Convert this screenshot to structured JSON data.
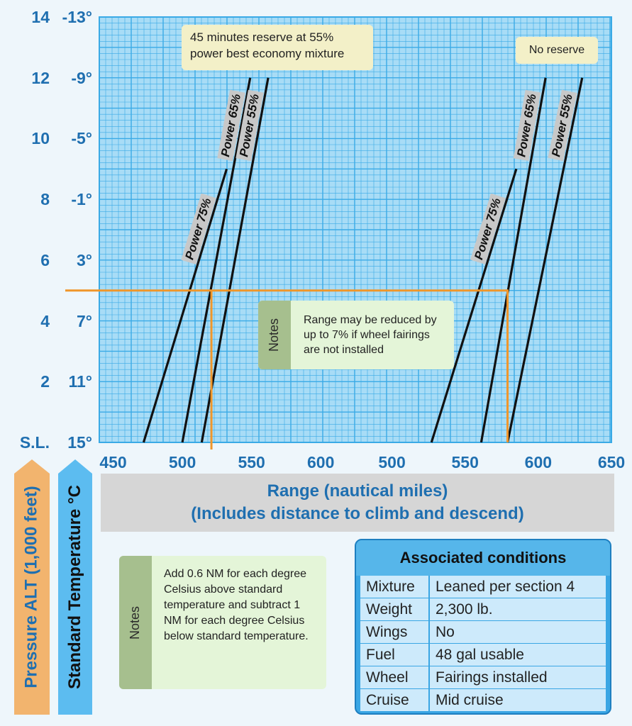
{
  "chart_data": {
    "type": "line",
    "title": "",
    "xlabel": "Range (nautical miles)",
    "xlabel_sub": "(Includes distance to climb and descend)",
    "ylabel_left": "Pressure ALT (1,000 feet)",
    "ylabel_right": "Standard Temperature °C",
    "ylim": [
      0,
      14
    ],
    "y_ticks": [
      {
        "alt": "14",
        "temp": "-13°",
        "v": 14
      },
      {
        "alt": "12",
        "temp": "-9°",
        "v": 12
      },
      {
        "alt": "10",
        "temp": "-5°",
        "v": 10
      },
      {
        "alt": "8",
        "temp": "-1°",
        "v": 8
      },
      {
        "alt": "6",
        "temp": "3°",
        "v": 6
      },
      {
        "alt": "4",
        "temp": "7°",
        "v": 4
      },
      {
        "alt": "2",
        "temp": "11°",
        "v": 2
      },
      {
        "alt": "S.L.",
        "temp": "15°",
        "v": 0
      }
    ],
    "x_panels": [
      {
        "name": "45 minutes reserve",
        "xlim": [
          440,
          625
        ],
        "ticks": [
          "450",
          "500",
          "550",
          "600"
        ]
      },
      {
        "name": "No reserve",
        "xlim": [
          475,
          650
        ],
        "ticks": [
          "500",
          "550",
          "600",
          "650"
        ]
      }
    ],
    "series": [
      {
        "name": "Power 75%",
        "panel": 0,
        "x": [
          472,
          532
        ],
        "y": [
          0,
          9
        ]
      },
      {
        "name": "Power 65%",
        "panel": 0,
        "x": [
          500,
          549
        ],
        "y": [
          0,
          12
        ]
      },
      {
        "name": "Power 55%",
        "panel": 0,
        "x": [
          514,
          562
        ],
        "y": [
          0,
          12
        ]
      },
      {
        "name": "Power 75%",
        "panel": 1,
        "x": [
          527,
          585
        ],
        "y": [
          0,
          9
        ]
      },
      {
        "name": "Power 65%",
        "panel": 1,
        "x": [
          561,
          605
        ],
        "y": [
          0,
          12
        ]
      },
      {
        "name": "Power 55%",
        "panel": 1,
        "x": [
          579,
          630
        ],
        "y": [
          0,
          12
        ]
      }
    ],
    "example": {
      "alt": 5,
      "range_reserve": 521,
      "range_no_reserve": 579
    },
    "annotations": {
      "reserve_box": "45 minutes reserve at 55%\npower best economy mixture",
      "no_reserve_box": "No reserve"
    },
    "grid": true
  },
  "notes_inner": {
    "tag": "Notes",
    "text": "Range may be reduced by up to 7% if wheel fairings are not installed"
  },
  "notes_outer": {
    "tag": "Notes",
    "text": "Add 0.6 NM for each degree Celsius above standard temperature and subtract 1 NM for each degree Celsius below standard temperature."
  },
  "conditions": {
    "title": "Associated conditions",
    "rows": [
      {
        "k": "Mixture",
        "v": "Leaned per section 4"
      },
      {
        "k": "Weight",
        "v": "2,300 lb."
      },
      {
        "k": "Wings",
        "v": "No"
      },
      {
        "k": "Fuel",
        "v": "48 gal usable"
      },
      {
        "k": "Wheel",
        "v": "Fairings installed"
      },
      {
        "k": "Cruise",
        "v": "Mid cruise"
      }
    ]
  },
  "colors": {
    "grid_bg": "#a8dcf6",
    "grid_line": "#3aaae6",
    "orange": "#f0962a",
    "blue_text": "#1f6fb0",
    "alt_arrow": "#f2b46e",
    "temp_arrow": "#5cbcf0"
  }
}
